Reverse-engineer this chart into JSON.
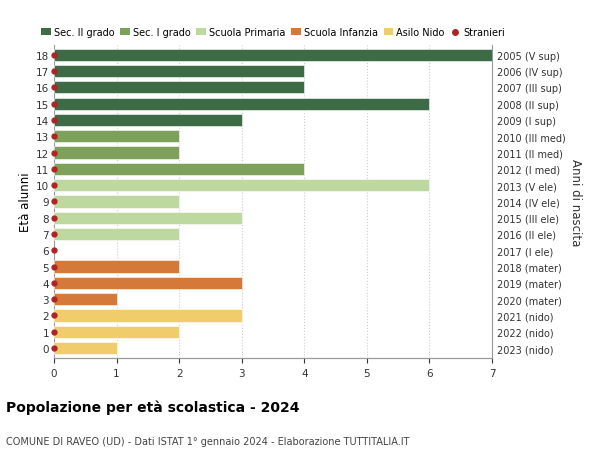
{
  "ages": [
    18,
    17,
    16,
    15,
    14,
    13,
    12,
    11,
    10,
    9,
    8,
    7,
    6,
    5,
    4,
    3,
    2,
    1,
    0
  ],
  "right_labels": [
    "2005 (V sup)",
    "2006 (IV sup)",
    "2007 (III sup)",
    "2008 (II sup)",
    "2009 (I sup)",
    "2010 (III med)",
    "2011 (II med)",
    "2012 (I med)",
    "2013 (V ele)",
    "2014 (IV ele)",
    "2015 (III ele)",
    "2016 (II ele)",
    "2017 (I ele)",
    "2018 (mater)",
    "2019 (mater)",
    "2020 (mater)",
    "2021 (nido)",
    "2022 (nido)",
    "2023 (nido)"
  ],
  "bar_values": [
    7,
    4,
    4,
    6,
    3,
    2,
    2,
    4,
    6,
    2,
    3,
    2,
    0,
    2,
    3,
    1,
    3,
    2,
    1
  ],
  "bar_colors": [
    "#3d6b45",
    "#3d6b45",
    "#3d6b45",
    "#3d6b45",
    "#3d6b45",
    "#7da05a",
    "#7da05a",
    "#7da05a",
    "#bdd9a0",
    "#bdd9a0",
    "#bdd9a0",
    "#bdd9a0",
    "#bdd9a0",
    "#d4793a",
    "#d4793a",
    "#d4793a",
    "#f0cc6a",
    "#f0cc6a",
    "#f0cc6a"
  ],
  "legend_items": [
    {
      "label": "Sec. II grado",
      "color": "#3d6b45"
    },
    {
      "label": "Sec. I grado",
      "color": "#7da05a"
    },
    {
      "label": "Scuola Primaria",
      "color": "#bdd9a0"
    },
    {
      "label": "Scuola Infanzia",
      "color": "#d4793a"
    },
    {
      "label": "Asilo Nido",
      "color": "#f0cc6a"
    },
    {
      "label": "Stranieri",
      "color": "#b22222"
    }
  ],
  "ylabel_left": "Età alunni",
  "ylabel_right": "Anni di nascita",
  "title": "Popolazione per età scolastica - 2024",
  "subtitle": "COMUNE DI RAVEO (UD) - Dati ISTAT 1° gennaio 2024 - Elaborazione TUTTITALIA.IT",
  "xlim": [
    0,
    7
  ],
  "xticks": [
    0,
    1,
    2,
    3,
    4,
    5,
    6,
    7
  ],
  "bg_color": "#ffffff",
  "grid_color": "#cccccc",
  "bar_height": 0.75,
  "stranieri_color": "#b22222"
}
